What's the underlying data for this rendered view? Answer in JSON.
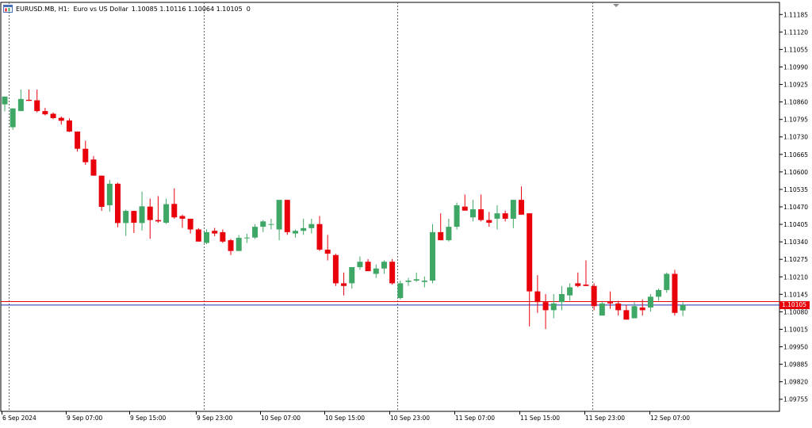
{
  "header": {
    "symbol_text": "EURUSD.MB, H1:  Euro vs US Dollar",
    "ohlc_text": "1.10085 1.10116 1.10064 1.10105  0",
    "icon": "chart-window-icon"
  },
  "current_price_label": "1.10105",
  "colors": {
    "bull": "#3fa765",
    "bear": "#e8000b",
    "grid": "#666666",
    "bid_line": "#1f2fb5",
    "ask_line": "#e8000b"
  },
  "chart_data": {
    "type": "candlestick",
    "ylim": [
      1.0971,
      1.1123
    ],
    "yticks": [
      "1.11185",
      "1.11120",
      "1.11055",
      "1.10990",
      "1.10925",
      "1.10860",
      "1.10795",
      "1.10730",
      "1.10665",
      "1.10600",
      "1.10535",
      "1.10470",
      "1.10405",
      "1.10340",
      "1.10275",
      "1.10210",
      "1.10145",
      "1.10080",
      "1.10015",
      "1.09950",
      "1.09885",
      "1.09820",
      "1.09755"
    ],
    "xticks": [
      "6 Sep 2024",
      "9 Sep 07:00",
      "9 Sep 15:00",
      "9 Sep 23:00",
      "10 Sep 07:00",
      "10 Sep 15:00",
      "10 Sep 23:00",
      "11 Sep 07:00",
      "11 Sep 15:00",
      "11 Sep 23:00",
      "12 Sep 07:00"
    ],
    "bid": 1.10105,
    "ask": 1.10118,
    "candles": [
      {
        "o": 1.10851,
        "h": 1.1088,
        "l": 1.10825,
        "c": 1.1088
      },
      {
        "o": 1.10766,
        "h": 1.10836,
        "l": 1.10756,
        "c": 1.10836
      },
      {
        "o": 1.10826,
        "h": 1.10906,
        "l": 1.10826,
        "c": 1.10871
      },
      {
        "o": 1.10868,
        "h": 1.10906,
        "l": 1.10864,
        "c": 1.10864
      },
      {
        "o": 1.10866,
        "h": 1.10906,
        "l": 1.10821,
        "c": 1.10826
      },
      {
        "o": 1.10826,
        "h": 1.10838,
        "l": 1.1081,
        "c": 1.10814
      },
      {
        "o": 1.10816,
        "h": 1.10821,
        "l": 1.10796,
        "c": 1.108
      },
      {
        "o": 1.10801,
        "h": 1.10806,
        "l": 1.10776,
        "c": 1.1079
      },
      {
        "o": 1.10791,
        "h": 1.10799,
        "l": 1.10748,
        "c": 1.1075
      },
      {
        "o": 1.1075,
        "h": 1.1075,
        "l": 1.10675,
        "c": 1.10686
      },
      {
        "o": 1.10686,
        "h": 1.10716,
        "l": 1.10626,
        "c": 1.10636
      },
      {
        "o": 1.10646,
        "h": 1.10659,
        "l": 1.10586,
        "c": 1.10586
      },
      {
        "o": 1.10586,
        "h": 1.10586,
        "l": 1.10455,
        "c": 1.1047
      },
      {
        "o": 1.10476,
        "h": 1.1057,
        "l": 1.10452,
        "c": 1.10556
      },
      {
        "o": 1.10556,
        "h": 1.1056,
        "l": 1.10394,
        "c": 1.1041
      },
      {
        "o": 1.1041,
        "h": 1.1046,
        "l": 1.10362,
        "c": 1.10455
      },
      {
        "o": 1.10455,
        "h": 1.10456,
        "l": 1.10373,
        "c": 1.10411
      },
      {
        "o": 1.1041,
        "h": 1.10527,
        "l": 1.10382,
        "c": 1.10472
      },
      {
        "o": 1.10471,
        "h": 1.10501,
        "l": 1.10351,
        "c": 1.10421
      },
      {
        "o": 1.10421,
        "h": 1.1051,
        "l": 1.10411,
        "c": 1.10416
      },
      {
        "o": 1.10411,
        "h": 1.10501,
        "l": 1.10406,
        "c": 1.1048
      },
      {
        "o": 1.10481,
        "h": 1.10539,
        "l": 1.10426,
        "c": 1.10431
      },
      {
        "o": 1.10436,
        "h": 1.10441,
        "l": 1.10392,
        "c": 1.10426
      },
      {
        "o": 1.10426,
        "h": 1.10426,
        "l": 1.10371,
        "c": 1.10386
      },
      {
        "o": 1.10386,
        "h": 1.10391,
        "l": 1.10341,
        "c": 1.10341
      },
      {
        "o": 1.10336,
        "h": 1.10386,
        "l": 1.10331,
        "c": 1.10376
      },
      {
        "o": 1.10381,
        "h": 1.10392,
        "l": 1.10361,
        "c": 1.10371
      },
      {
        "o": 1.10376,
        "h": 1.10386,
        "l": 1.10336,
        "c": 1.10341
      },
      {
        "o": 1.10346,
        "h": 1.10351,
        "l": 1.10291,
        "c": 1.10306
      },
      {
        "o": 1.10306,
        "h": 1.10365,
        "l": 1.10306,
        "c": 1.10355
      },
      {
        "o": 1.10356,
        "h": 1.1037,
        "l": 1.10336,
        "c": 1.10356
      },
      {
        "o": 1.10356,
        "h": 1.10406,
        "l": 1.10351,
        "c": 1.10396
      },
      {
        "o": 1.10396,
        "h": 1.10421,
        "l": 1.10376,
        "c": 1.10416
      },
      {
        "o": 1.10406,
        "h": 1.10426,
        "l": 1.10386,
        "c": 1.10406
      },
      {
        "o": 1.10386,
        "h": 1.10496,
        "l": 1.10346,
        "c": 1.10496
      },
      {
        "o": 1.10496,
        "h": 1.10496,
        "l": 1.10366,
        "c": 1.10376
      },
      {
        "o": 1.10371,
        "h": 1.10386,
        "l": 1.10356,
        "c": 1.10381
      },
      {
        "o": 1.10381,
        "h": 1.10426,
        "l": 1.10366,
        "c": 1.10391
      },
      {
        "o": 1.10391,
        "h": 1.10426,
        "l": 1.10371,
        "c": 1.10406
      },
      {
        "o": 1.10406,
        "h": 1.10436,
        "l": 1.10306,
        "c": 1.10311
      },
      {
        "o": 1.10311,
        "h": 1.10366,
        "l": 1.10271,
        "c": 1.10296
      },
      {
        "o": 1.10291,
        "h": 1.10296,
        "l": 1.10176,
        "c": 1.10186
      },
      {
        "o": 1.10186,
        "h": 1.10226,
        "l": 1.10141,
        "c": 1.10176
      },
      {
        "o": 1.10186,
        "h": 1.10246,
        "l": 1.10166,
        "c": 1.10246
      },
      {
        "o": 1.10246,
        "h": 1.10286,
        "l": 1.10236,
        "c": 1.10266
      },
      {
        "o": 1.10266,
        "h": 1.10276,
        "l": 1.10231,
        "c": 1.10231
      },
      {
        "o": 1.10221,
        "h": 1.10256,
        "l": 1.10206,
        "c": 1.10241
      },
      {
        "o": 1.10241,
        "h": 1.10271,
        "l": 1.10221,
        "c": 1.10266
      },
      {
        "o": 1.10266,
        "h": 1.10276,
        "l": 1.10181,
        "c": 1.10186
      },
      {
        "o": 1.10131,
        "h": 1.10196,
        "l": 1.10126,
        "c": 1.10186
      },
      {
        "o": 1.10191,
        "h": 1.10206,
        "l": 1.10176,
        "c": 1.10196
      },
      {
        "o": 1.10196,
        "h": 1.10226,
        "l": 1.10191,
        "c": 1.10201
      },
      {
        "o": 1.10191,
        "h": 1.10211,
        "l": 1.10171,
        "c": 1.10196
      },
      {
        "o": 1.10196,
        "h": 1.10406,
        "l": 1.10186,
        "c": 1.10376
      },
      {
        "o": 1.10376,
        "h": 1.10446,
        "l": 1.10346,
        "c": 1.10346
      },
      {
        "o": 1.10346,
        "h": 1.10426,
        "l": 1.10341,
        "c": 1.10396
      },
      {
        "o": 1.10396,
        "h": 1.10486,
        "l": 1.10386,
        "c": 1.10476
      },
      {
        "o": 1.10471,
        "h": 1.10516,
        "l": 1.10461,
        "c": 1.10456
      },
      {
        "o": 1.10431,
        "h": 1.10496,
        "l": 1.10416,
        "c": 1.10461
      },
      {
        "o": 1.10461,
        "h": 1.10516,
        "l": 1.10416,
        "c": 1.10421
      },
      {
        "o": 1.10421,
        "h": 1.10451,
        "l": 1.10396,
        "c": 1.10411
      },
      {
        "o": 1.10426,
        "h": 1.10476,
        "l": 1.10386,
        "c": 1.10446
      },
      {
        "o": 1.10446,
        "h": 1.10456,
        "l": 1.10416,
        "c": 1.10426
      },
      {
        "o": 1.10426,
        "h": 1.10496,
        "l": 1.10391,
        "c": 1.10496
      },
      {
        "o": 1.10496,
        "h": 1.10546,
        "l": 1.10441,
        "c": 1.10441
      },
      {
        "o": 1.10446,
        "h": 1.10446,
        "l": 1.10026,
        "c": 1.10156
      },
      {
        "o": 1.10156,
        "h": 1.10216,
        "l": 1.10076,
        "c": 1.10116
      },
      {
        "o": 1.10116,
        "h": 1.10146,
        "l": 1.10016,
        "c": 1.10086
      },
      {
        "o": 1.10086,
        "h": 1.10146,
        "l": 1.10056,
        "c": 1.10111
      },
      {
        "o": 1.10116,
        "h": 1.10176,
        "l": 1.10086,
        "c": 1.10146
      },
      {
        "o": 1.10141,
        "h": 1.10186,
        "l": 1.10121,
        "c": 1.10171
      },
      {
        "o": 1.10186,
        "h": 1.10226,
        "l": 1.10171,
        "c": 1.10176
      },
      {
        "o": 1.10181,
        "h": 1.10271,
        "l": 1.10176,
        "c": 1.10176
      },
      {
        "o": 1.10176,
        "h": 1.10186,
        "l": 1.10086,
        "c": 1.10101
      },
      {
        "o": 1.10066,
        "h": 1.10116,
        "l": 1.10066,
        "c": 1.10111
      },
      {
        "o": 1.10116,
        "h": 1.10156,
        "l": 1.10091,
        "c": 1.10111
      },
      {
        "o": 1.10111,
        "h": 1.10121,
        "l": 1.10066,
        "c": 1.10086
      },
      {
        "o": 1.10086,
        "h": 1.10106,
        "l": 1.10051,
        "c": 1.10051
      },
      {
        "o": 1.10056,
        "h": 1.10116,
        "l": 1.10056,
        "c": 1.10101
      },
      {
        "o": 1.10096,
        "h": 1.10126,
        "l": 1.10066,
        "c": 1.10086
      },
      {
        "o": 1.10096,
        "h": 1.10146,
        "l": 1.10081,
        "c": 1.10136
      },
      {
        "o": 1.10136,
        "h": 1.10166,
        "l": 1.10121,
        "c": 1.10161
      },
      {
        "o": 1.10161,
        "h": 1.10226,
        "l": 1.10151,
        "c": 1.10221
      },
      {
        "o": 1.10221,
        "h": 1.10236,
        "l": 1.10066,
        "c": 1.10076
      },
      {
        "o": 1.10085,
        "h": 1.10116,
        "l": 1.10064,
        "c": 1.10105
      }
    ]
  }
}
